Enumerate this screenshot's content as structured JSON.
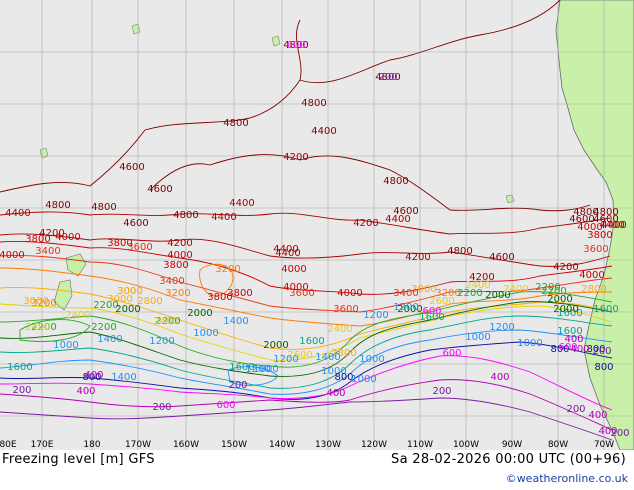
{
  "map": {
    "title": "Freezing level [m] GFS",
    "datetime": "Sa 28-02-2026 00:00 UTC (00+96)",
    "credit": "©weatheronline.co.uk",
    "colors": {
      "ocean": "#e9e9e9",
      "land": "#c8f0a8",
      "land_border": "#6a6a6a",
      "grid": "#a8a8a8",
      "c4800": "#800000",
      "c4400": "#aa0000",
      "c4000": "#cc0000",
      "c3600": "#ee3010",
      "c3200": "#ff7a00",
      "c2800": "#ffaa00",
      "c2400": "#e6d200",
      "c2200": "#22aa22",
      "c2000": "#006400",
      "c1600": "#00a88a",
      "c1200": "#2090ff",
      "c800": "#1010a0",
      "c600": "#ff00ff",
      "c400": "#b000b0",
      "c200": "#7a1aa0"
    },
    "lon_labels": [
      "80E",
      "170E",
      "180",
      "170W",
      "160W",
      "150W",
      "140W",
      "130W",
      "120W",
      "110W",
      "100W",
      "90W",
      "80W",
      "70W"
    ],
    "contour_labels": [
      {
        "text": "4800",
        "color": "c4800"
      },
      {
        "text": "4800",
        "color": "c4800"
      },
      {
        "text": "4800",
        "color": "c4800"
      },
      {
        "text": "4800",
        "color": "c4800"
      },
      {
        "text": "4400",
        "color": "c4800"
      },
      {
        "text": "4200",
        "color": "c4400"
      },
      {
        "text": "4800",
        "color": "c4800"
      },
      {
        "text": "4600",
        "color": "c4800"
      },
      {
        "text": "4800",
        "color": "c4800"
      },
      {
        "text": "4800",
        "color": "c4800"
      },
      {
        "text": "4600",
        "color": "c4800"
      },
      {
        "text": "4600",
        "color": "c4800"
      },
      {
        "text": "4600",
        "color": "c4800"
      },
      {
        "text": "4800",
        "color": "c4800"
      },
      {
        "text": "4400",
        "color": "c4400"
      },
      {
        "text": "4400",
        "color": "c4400"
      },
      {
        "text": "4400",
        "color": "c4400"
      },
      {
        "text": "4400",
        "color": "c4400"
      },
      {
        "text": "4800",
        "color": "c4800"
      },
      {
        "text": "4600",
        "color": "c4800"
      },
      {
        "text": "4600",
        "color": "c4800"
      },
      {
        "text": "4400",
        "color": "c4400"
      },
      {
        "text": "4200",
        "color": "c4400"
      },
      {
        "text": "4400",
        "color": "c4400"
      },
      {
        "text": "4800",
        "color": "c4800"
      },
      {
        "text": "4400",
        "color": "c4400"
      },
      {
        "text": "4200",
        "color": "c4400"
      },
      {
        "text": "3800",
        "color": "c4000"
      },
      {
        "text": "4000",
        "color": "c4000"
      },
      {
        "text": "3800",
        "color": "c4000"
      },
      {
        "text": "4200",
        "color": "c4400"
      },
      {
        "text": "4400",
        "color": "c4400"
      },
      {
        "text": "4200",
        "color": "c4400"
      },
      {
        "text": "4800",
        "color": "c4800"
      },
      {
        "text": "4600",
        "color": "c4800"
      },
      {
        "text": "4200",
        "color": "c4400"
      },
      {
        "text": "4000",
        "color": "c4000"
      },
      {
        "text": "3800",
        "color": "c4000"
      },
      {
        "text": "4000",
        "color": "c4000"
      },
      {
        "text": "3600",
        "color": "c3600"
      },
      {
        "text": "3400",
        "color": "c3600"
      },
      {
        "text": "3800",
        "color": "c4000"
      },
      {
        "text": "4000",
        "color": "c4000"
      },
      {
        "text": "4200",
        "color": "c4400"
      },
      {
        "text": "4000",
        "color": "c4000"
      },
      {
        "text": "4000",
        "color": "c4000"
      },
      {
        "text": "3600",
        "color": "c3600"
      },
      {
        "text": "3800",
        "color": "c4000"
      },
      {
        "text": "3200",
        "color": "c3200"
      },
      {
        "text": "3400",
        "color": "c3600"
      },
      {
        "text": "3200",
        "color": "c3200"
      },
      {
        "text": "3000",
        "color": "c2800"
      },
      {
        "text": "3600",
        "color": "c3600"
      },
      {
        "text": "3600",
        "color": "c3600"
      },
      {
        "text": "3800",
        "color": "c4000"
      },
      {
        "text": "4000",
        "color": "c4000"
      },
      {
        "text": "4000",
        "color": "c4000"
      },
      {
        "text": "3000",
        "color": "c2800"
      },
      {
        "text": "3200",
        "color": "c3200"
      },
      {
        "text": "3000",
        "color": "c2800"
      },
      {
        "text": "2800",
        "color": "c2800"
      },
      {
        "text": "3000",
        "color": "c2800"
      },
      {
        "text": "2800",
        "color": "c2800"
      },
      {
        "text": "3000",
        "color": "c2800"
      },
      {
        "text": "3200",
        "color": "c3200"
      },
      {
        "text": "3400",
        "color": "c3600"
      },
      {
        "text": "2400",
        "color": "c2400"
      },
      {
        "text": "2200",
        "color": "c2200"
      },
      {
        "text": "2400",
        "color": "c2400"
      },
      {
        "text": "2000",
        "color": "c2000"
      },
      {
        "text": "2200",
        "color": "c2200"
      },
      {
        "text": "2000",
        "color": "c2000"
      },
      {
        "text": "2400",
        "color": "c2400"
      },
      {
        "text": "2600",
        "color": "c2400"
      },
      {
        "text": "2200",
        "color": "c2200"
      },
      {
        "text": "2000",
        "color": "c2000"
      },
      {
        "text": "2400",
        "color": "c2400"
      },
      {
        "text": "2200",
        "color": "c2200"
      },
      {
        "text": "2200",
        "color": "c2200"
      },
      {
        "text": "2000",
        "color": "c2000"
      },
      {
        "text": "1600",
        "color": "c1600"
      },
      {
        "text": "2200",
        "color": "c2200"
      },
      {
        "text": "2000",
        "color": "c2000"
      },
      {
        "text": "1600",
        "color": "c1600"
      },
      {
        "text": "2200",
        "color": "c2200"
      },
      {
        "text": "2400",
        "color": "c2400"
      },
      {
        "text": "2600",
        "color": "c2400"
      },
      {
        "text": "2800",
        "color": "c2800"
      },
      {
        "text": "2400",
        "color": "c2400"
      },
      {
        "text": "2000",
        "color": "c2000"
      },
      {
        "text": "1600",
        "color": "c1600"
      },
      {
        "text": "2000",
        "color": "c2000"
      },
      {
        "text": "1600",
        "color": "c1600"
      },
      {
        "text": "1200",
        "color": "c1200"
      },
      {
        "text": "1000",
        "color": "c1200"
      },
      {
        "text": "1000",
        "color": "c1200"
      },
      {
        "text": "1000",
        "color": "c1200"
      },
      {
        "text": "1400",
        "color": "c1200"
      },
      {
        "text": "1200",
        "color": "c1200"
      },
      {
        "text": "1600",
        "color": "c1600"
      },
      {
        "text": "1400",
        "color": "c1200"
      },
      {
        "text": "1200",
        "color": "c1200"
      },
      {
        "text": "1200",
        "color": "c1200"
      },
      {
        "text": "800",
        "color": "c800"
      },
      {
        "text": "1000",
        "color": "c1200"
      },
      {
        "text": "1600",
        "color": "c1600"
      },
      {
        "text": "1600",
        "color": "c1600"
      },
      {
        "text": "1000",
        "color": "c1200"
      },
      {
        "text": "1400",
        "color": "c1200"
      },
      {
        "text": "800",
        "color": "c800"
      },
      {
        "text": "800",
        "color": "c800"
      },
      {
        "text": "1200",
        "color": "c1200"
      },
      {
        "text": "1000",
        "color": "c1200"
      },
      {
        "text": "800",
        "color": "c800"
      },
      {
        "text": "1400",
        "color": "c1200"
      },
      {
        "text": "1000",
        "color": "c1200"
      },
      {
        "text": "1200",
        "color": "c1200"
      },
      {
        "text": "600",
        "color": "c600"
      },
      {
        "text": "800",
        "color": "c800"
      },
      {
        "text": "1000",
        "color": "c1200"
      },
      {
        "text": "600",
        "color": "c600"
      },
      {
        "text": "400",
        "color": "c400"
      },
      {
        "text": "600",
        "color": "c600"
      },
      {
        "text": "400",
        "color": "c400"
      },
      {
        "text": "200",
        "color": "c200"
      },
      {
        "text": "400",
        "color": "c400"
      },
      {
        "text": "200",
        "color": "c200"
      },
      {
        "text": "400",
        "color": "c400"
      },
      {
        "text": "200",
        "color": "c200"
      },
      {
        "text": "400",
        "color": "c400"
      },
      {
        "text": "200",
        "color": "c200"
      },
      {
        "text": "600",
        "color": "c600"
      },
      {
        "text": "400",
        "color": "c400"
      },
      {
        "text": "200",
        "color": "c200"
      },
      {
        "text": "400",
        "color": "c400"
      },
      {
        "text": "200",
        "color": "c200"
      },
      {
        "text": "400",
        "color": "c400"
      },
      {
        "text": "200",
        "color": "c200"
      },
      {
        "text": "600",
        "color": "c600"
      },
      {
        "text": "200",
        "color": "c200"
      }
    ]
  }
}
